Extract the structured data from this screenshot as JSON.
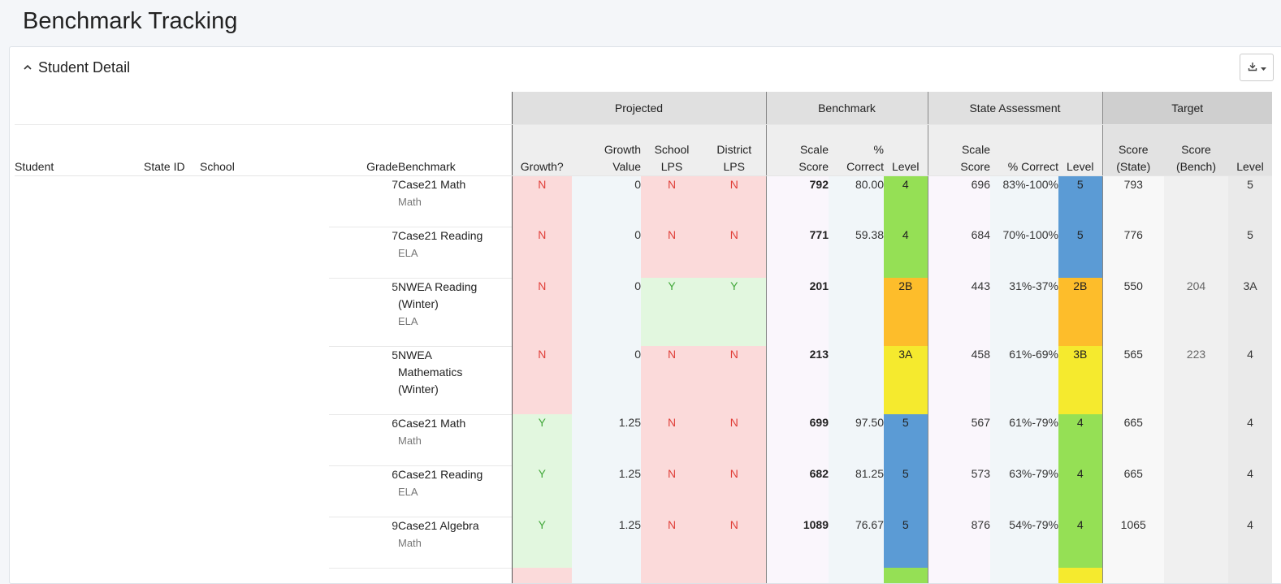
{
  "page": {
    "title": "Benchmark Tracking"
  },
  "panel": {
    "title": "Student Detail",
    "collapse_icon": "chevron-up-icon",
    "export_icon": "download-icon"
  },
  "groups": {
    "projected": "Projected",
    "benchmark": "Benchmark",
    "state": "State Assessment",
    "target": "Target"
  },
  "columns": {
    "student": "Student",
    "state_id": "State ID",
    "school": "School",
    "grade": "Grade",
    "benchmark": "Benchmark",
    "growth": "Growth?",
    "growth_value": [
      "Growth",
      "Value"
    ],
    "school_lps": [
      "School",
      "LPS"
    ],
    "district_lps": [
      "District",
      "LPS"
    ],
    "bm_scale": [
      "Scale",
      "Score"
    ],
    "bm_pct": [
      "%",
      "Correct"
    ],
    "bm_level": "Level",
    "st_scale": [
      "Scale",
      "Score"
    ],
    "st_pct": "% Correct",
    "st_level": "Level",
    "tg_state": [
      "Score",
      "(State)"
    ],
    "tg_bench": [
      "Score",
      "(Bench)"
    ],
    "tg_level": "Level"
  },
  "colors": {
    "green": "#95e055",
    "blue": "#5b9bd5",
    "orange": "#fdbd2b",
    "yellow": "#f5ea2e",
    "red_text": "#e0403a",
    "green_text": "#43a83b"
  },
  "rows": [
    {
      "grade": "7",
      "benchmark": [
        "Case21 Math"
      ],
      "subject": "Math",
      "growth": "N",
      "growth_value": "0",
      "school_lps": "N",
      "district_lps": "N",
      "bm_scale": "792",
      "bm_pct": "80.00",
      "bm_level": "4",
      "bm_level_color": "#95e055",
      "st_scale": "696",
      "st_pct": "83%-100%",
      "st_level": "5",
      "st_level_color": "#5b9bd5",
      "tg_state": "793",
      "tg_bench": "",
      "tg_level": "5"
    },
    {
      "grade": "7",
      "benchmark": [
        "Case21 Reading"
      ],
      "subject": "ELA",
      "growth": "N",
      "growth_value": "0",
      "school_lps": "N",
      "district_lps": "N",
      "bm_scale": "771",
      "bm_pct": "59.38",
      "bm_level": "4",
      "bm_level_color": "#95e055",
      "st_scale": "684",
      "st_pct": "70%-100%",
      "st_level": "5",
      "st_level_color": "#5b9bd5",
      "tg_state": "776",
      "tg_bench": "",
      "tg_level": "5"
    },
    {
      "grade": "5",
      "benchmark": [
        "NWEA Reading",
        "(Winter)"
      ],
      "subject": "ELA",
      "growth": "N",
      "growth_value": "0",
      "school_lps": "Y",
      "district_lps": "Y",
      "bm_scale": "201",
      "bm_pct": "",
      "bm_level": "2B",
      "bm_level_color": "#fdbd2b",
      "st_scale": "443",
      "st_pct": "31%-37%",
      "st_level": "2B",
      "st_level_color": "#fdbd2b",
      "tg_state": "550",
      "tg_bench": "204",
      "tg_level": "3A"
    },
    {
      "grade": "5",
      "benchmark": [
        "NWEA",
        "Mathematics",
        "(Winter)"
      ],
      "subject": "",
      "growth": "N",
      "growth_value": "0",
      "school_lps": "N",
      "district_lps": "N",
      "bm_scale": "213",
      "bm_pct": "",
      "bm_level": "3A",
      "bm_level_color": "#f5ea2e",
      "st_scale": "458",
      "st_pct": "61%-69%",
      "st_level": "3B",
      "st_level_color": "#f5ea2e",
      "tg_state": "565",
      "tg_bench": "223",
      "tg_level": "4"
    },
    {
      "grade": "6",
      "benchmark": [
        "Case21 Math"
      ],
      "subject": "Math",
      "growth": "Y",
      "growth_value": "1.25",
      "school_lps": "N",
      "district_lps": "N",
      "bm_scale": "699",
      "bm_pct": "97.50",
      "bm_level": "5",
      "bm_level_color": "#5b9bd5",
      "st_scale": "567",
      "st_pct": "61%-79%",
      "st_level": "4",
      "st_level_color": "#95e055",
      "tg_state": "665",
      "tg_bench": "",
      "tg_level": "4"
    },
    {
      "grade": "6",
      "benchmark": [
        "Case21 Reading"
      ],
      "subject": "ELA",
      "growth": "Y",
      "growth_value": "1.25",
      "school_lps": "N",
      "district_lps": "N",
      "bm_scale": "682",
      "bm_pct": "81.25",
      "bm_level": "5",
      "bm_level_color": "#5b9bd5",
      "st_scale": "573",
      "st_pct": "63%-79%",
      "st_level": "4",
      "st_level_color": "#95e055",
      "tg_state": "665",
      "tg_bench": "",
      "tg_level": "4"
    },
    {
      "grade": "9",
      "benchmark": [
        "Case21 Algebra"
      ],
      "subject": "Math",
      "growth": "Y",
      "growth_value": "1.25",
      "school_lps": "N",
      "district_lps": "N",
      "bm_scale": "1089",
      "bm_pct": "76.67",
      "bm_level": "5",
      "bm_level_color": "#5b9bd5",
      "st_scale": "876",
      "st_pct": "54%-79%",
      "st_level": "4",
      "st_level_color": "#95e055",
      "tg_state": "1065",
      "tg_bench": "",
      "tg_level": "4"
    },
    {
      "grade": "",
      "benchmark": [
        ""
      ],
      "subject": "",
      "growth": "",
      "growth_value": "",
      "school_lps": "",
      "district_lps": "",
      "bm_scale": "",
      "bm_pct": "",
      "bm_level": "",
      "bm_level_color": "#95e055",
      "st_scale": "",
      "st_pct": "",
      "st_level": "",
      "st_level_color": "#f5ea2e",
      "tg_state": "",
      "tg_bench": "",
      "tg_level": ""
    }
  ]
}
